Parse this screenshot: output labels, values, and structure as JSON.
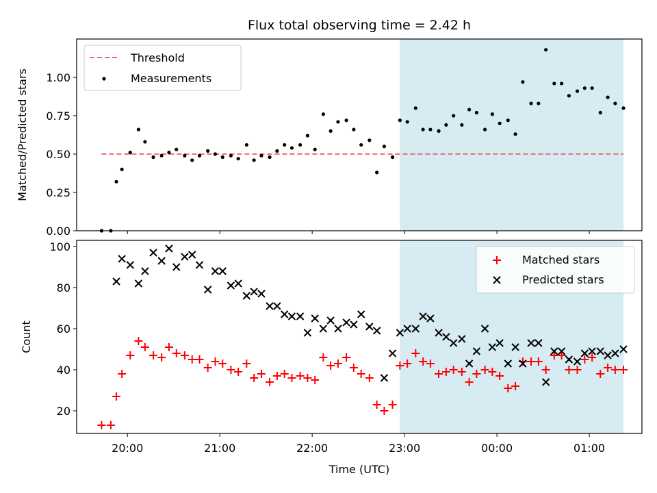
{
  "chart_data": {
    "title": "Flux total observing time = 2.42 h",
    "xlabel": "Time (UTC)",
    "x_unit": "hours since 19:00 UTC",
    "xlim": [
      0.45,
      6.57
    ],
    "xticks": [
      {
        "value": 1,
        "label": "20:00"
      },
      {
        "value": 2,
        "label": "21:00"
      },
      {
        "value": 3,
        "label": "22:00"
      },
      {
        "value": 4,
        "label": "23:00"
      },
      {
        "value": 5,
        "label": "00:00"
      },
      {
        "value": 6,
        "label": "01:00"
      }
    ],
    "shaded_region": {
      "x_start": 3.95,
      "x_end": 6.37,
      "color": "#add8e6",
      "opacity": 0.5
    },
    "panels": [
      {
        "type": "scatter",
        "ylabel": "Matched/Predicted stars",
        "ylim": [
          0,
          1.25
        ],
        "yticks": [
          {
            "value": 0,
            "label": "0.00"
          },
          {
            "value": 0.25,
            "label": "0.25"
          },
          {
            "value": 0.5,
            "label": "0.50"
          },
          {
            "value": 0.75,
            "label": "0.75"
          },
          {
            "value": 1.0,
            "label": "1.00"
          }
        ],
        "legend_position": "top-left",
        "threshold": {
          "name": "Threshold",
          "value": 0.5,
          "x_start": 0.72,
          "x_end": 6.37,
          "color": "#f07070"
        },
        "series": [
          {
            "name": "Measurements",
            "marker": "dot",
            "color": "#000000",
            "x": [
              0.72,
              0.82,
              0.88,
              0.94,
              1.03,
              1.12,
              1.19,
              1.28,
              1.37,
              1.45,
              1.53,
              1.62,
              1.7,
              1.78,
              1.87,
              1.95,
              2.03,
              2.12,
              2.2,
              2.29,
              2.37,
              2.45,
              2.54,
              2.62,
              2.7,
              2.78,
              2.87,
              2.95,
              3.03,
              3.12,
              3.2,
              3.28,
              3.37,
              3.45,
              3.53,
              3.62,
              3.7,
              3.78,
              3.87,
              3.95,
              4.03,
              4.12,
              4.2,
              4.28,
              4.37,
              4.45,
              4.53,
              4.62,
              4.7,
              4.78,
              4.87,
              4.95,
              5.03,
              5.12,
              5.2,
              5.28,
              5.37,
              5.45,
              5.53,
              5.62,
              5.7,
              5.78,
              5.87,
              5.95,
              6.03,
              6.12,
              6.2,
              6.28,
              6.37
            ],
            "y": [
              0.0,
              0.0,
              0.32,
              0.4,
              0.51,
              0.66,
              0.58,
              0.48,
              0.49,
              0.51,
              0.53,
              0.49,
              0.46,
              0.49,
              0.52,
              0.5,
              0.48,
              0.49,
              0.47,
              0.56,
              0.46,
              0.49,
              0.48,
              0.52,
              0.56,
              0.54,
              0.56,
              0.62,
              0.53,
              0.76,
              0.65,
              0.71,
              0.72,
              0.66,
              0.56,
              0.59,
              0.38,
              0.55,
              0.48,
              0.72,
              0.71,
              0.8,
              0.66,
              0.66,
              0.65,
              0.69,
              0.75,
              0.69,
              0.79,
              0.77,
              0.66,
              0.76,
              0.7,
              0.72,
              0.63,
              0.97,
              0.83,
              0.83,
              1.18,
              0.96,
              0.96,
              0.88,
              0.91,
              0.93,
              0.93,
              0.77,
              0.87,
              0.83,
              0.8
            ]
          }
        ]
      },
      {
        "type": "scatter",
        "ylabel": "Count",
        "ylim": [
          9,
          103
        ],
        "yticks": [
          {
            "value": 20,
            "label": "20"
          },
          {
            "value": 40,
            "label": "40"
          },
          {
            "value": 60,
            "label": "60"
          },
          {
            "value": 80,
            "label": "80"
          },
          {
            "value": 100,
            "label": "100"
          }
        ],
        "legend_position": "top-right",
        "series": [
          {
            "name": "Matched stars",
            "marker": "plus",
            "color": "#ff0000",
            "x": [
              0.72,
              0.82,
              0.88,
              0.94,
              1.03,
              1.12,
              1.19,
              1.28,
              1.37,
              1.45,
              1.53,
              1.62,
              1.7,
              1.78,
              1.87,
              1.95,
              2.03,
              2.12,
              2.2,
              2.29,
              2.37,
              2.45,
              2.54,
              2.62,
              2.7,
              2.78,
              2.87,
              2.95,
              3.03,
              3.12,
              3.2,
              3.28,
              3.37,
              3.45,
              3.53,
              3.62,
              3.7,
              3.78,
              3.87,
              3.95,
              4.03,
              4.12,
              4.2,
              4.28,
              4.37,
              4.45,
              4.53,
              4.62,
              4.7,
              4.78,
              4.87,
              4.95,
              5.03,
              5.12,
              5.2,
              5.28,
              5.37,
              5.45,
              5.53,
              5.62,
              5.7,
              5.78,
              5.87,
              5.95,
              6.03,
              6.12,
              6.2,
              6.28,
              6.37
            ],
            "y": [
              13,
              13,
              27,
              38,
              47,
              54,
              51,
              47,
              46,
              51,
              48,
              47,
              45,
              45,
              41,
              44,
              43,
              40,
              39,
              43,
              36,
              38,
              34,
              37,
              38,
              36,
              37,
              36,
              35,
              46,
              42,
              43,
              46,
              41,
              38,
              36,
              23,
              20,
              23,
              42,
              43,
              48,
              44,
              43,
              38,
              39,
              40,
              39,
              34,
              38,
              40,
              39,
              37,
              31,
              32,
              44,
              44,
              44,
              40,
              47,
              47,
              40,
              40,
              45,
              46,
              38,
              41,
              40,
              40
            ]
          },
          {
            "name": "Predicted stars",
            "marker": "x",
            "color": "#000000",
            "x": [
              0.88,
              0.94,
              1.03,
              1.12,
              1.19,
              1.28,
              1.37,
              1.45,
              1.53,
              1.62,
              1.7,
              1.78,
              1.87,
              1.95,
              2.03,
              2.12,
              2.2,
              2.29,
              2.37,
              2.45,
              2.54,
              2.62,
              2.7,
              2.78,
              2.87,
              2.95,
              3.03,
              3.12,
              3.2,
              3.28,
              3.37,
              3.45,
              3.53,
              3.62,
              3.7,
              3.78,
              3.87,
              3.95,
              4.03,
              4.12,
              4.2,
              4.28,
              4.37,
              4.45,
              4.53,
              4.62,
              4.7,
              4.78,
              4.87,
              4.95,
              5.03,
              5.12,
              5.2,
              5.28,
              5.37,
              5.45,
              5.53,
              5.62,
              5.7,
              5.78,
              5.87,
              5.95,
              6.03,
              6.12,
              6.2,
              6.28,
              6.37
            ],
            "y": [
              83,
              94,
              91,
              82,
              88,
              97,
              93,
              99,
              90,
              95,
              96,
              91,
              79,
              88,
              88,
              81,
              82,
              76,
              78,
              77,
              71,
              71,
              67,
              66,
              66,
              58,
              65,
              60,
              64,
              60,
              63,
              62,
              67,
              61,
              59,
              36,
              48,
              58,
              60,
              60,
              66,
              65,
              58,
              56,
              53,
              55,
              43,
              49,
              60,
              51,
              53,
              43,
              51,
              43,
              53,
              53,
              34,
              49,
              49,
              45,
              44,
              48,
              49,
              49,
              47,
              48,
              50
            ]
          }
        ]
      }
    ]
  }
}
